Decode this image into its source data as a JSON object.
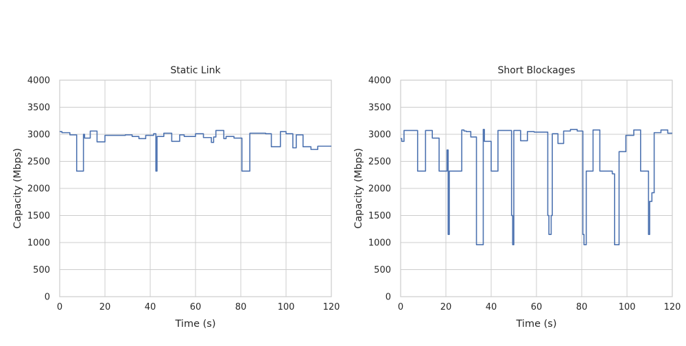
{
  "chart_data": [
    {
      "type": "line",
      "title": "Static Link",
      "xlabel": "Time (s)",
      "ylabel": "Capacity (Mbps)",
      "xlim": [
        0,
        120
      ],
      "ylim": [
        0,
        4000
      ],
      "xticks": [
        "0",
        "20",
        "40",
        "60",
        "80",
        "100",
        "120"
      ],
      "yticks": [
        "0",
        "500",
        "1000",
        "1500",
        "2000",
        "2500",
        "3000",
        "3500",
        "4000"
      ],
      "grid": true,
      "color": "#4c72b0",
      "series": [
        {
          "x": [
            0,
            1,
            1,
            4.5,
            4.5,
            7.5,
            7.5,
            10.5,
            10.5,
            11,
            11,
            13.5,
            13.5,
            16.5,
            16.5,
            20,
            20,
            29,
            29,
            32,
            32,
            35,
            35,
            38,
            38,
            41.5,
            41.5,
            42.5,
            42.5,
            43,
            43,
            46,
            46,
            49.5,
            49.5,
            52,
            52,
            53,
            53,
            55,
            55,
            60,
            60,
            63.5,
            63.5,
            67,
            67,
            68,
            68,
            69,
            69,
            72.5,
            72.5,
            73.5,
            73.5,
            77,
            77,
            80.5,
            80.5,
            81.5,
            81.5,
            84,
            84,
            85,
            85,
            91,
            91,
            93.5,
            93.5,
            97.5,
            97.5,
            100,
            100,
            103,
            103,
            104.5,
            104.5,
            107.5,
            107.5,
            111,
            111,
            114,
            114,
            118,
            118,
            120
          ],
          "y": [
            3050,
            3050,
            3030,
            3030,
            2990,
            2990,
            2320,
            2320,
            3000,
            3000,
            2930,
            2930,
            3060,
            3060,
            2860,
            2860,
            2980,
            2980,
            2990,
            2990,
            2960,
            2960,
            2920,
            2920,
            2980,
            2980,
            3010,
            3010,
            2320,
            2320,
            2960,
            2960,
            3020,
            3020,
            2870,
            2870,
            2870,
            2870,
            2990,
            2990,
            2960,
            2960,
            3010,
            3010,
            2940,
            2940,
            2850,
            2850,
            2950,
            2950,
            3070,
            3070,
            2920,
            2920,
            2960,
            2960,
            2930,
            2930,
            2320,
            2320,
            2320,
            2320,
            3020,
            3020,
            3020,
            3020,
            3010,
            3010,
            2770,
            2770,
            3050,
            3050,
            3010,
            3010,
            2750,
            2750,
            2990,
            2990,
            2770,
            2770,
            2720,
            2720,
            2780,
            2780,
            2780,
            2780
          ]
        }
      ]
    },
    {
      "type": "line",
      "title": "Short Blockages",
      "xlabel": "Time (s)",
      "ylabel": "Capacity (Mbps)",
      "xlim": [
        0,
        120
      ],
      "ylim": [
        0,
        4000
      ],
      "xticks": [
        "0",
        "20",
        "40",
        "60",
        "80",
        "100",
        "120"
      ],
      "yticks": [
        "0",
        "500",
        "1000",
        "1500",
        "2000",
        "2500",
        "3000",
        "3500",
        "4000"
      ],
      "grid": true,
      "color": "#4c72b0",
      "series": [
        {
          "x": [
            0,
            0.5,
            0.5,
            1.5,
            1.5,
            7.5,
            7.5,
            11,
            11,
            14,
            14,
            17,
            17,
            20.5,
            20.5,
            21,
            21,
            21.5,
            21.5,
            27,
            27,
            28,
            28,
            29,
            29,
            31,
            31,
            33.5,
            33.5,
            36.5,
            36.5,
            37,
            37,
            37.5,
            37.5,
            40,
            40,
            43,
            43,
            49,
            49,
            49.5,
            49.5,
            50,
            50,
            53,
            53,
            56,
            56,
            59,
            59,
            61,
            61,
            65,
            65,
            65.5,
            65.5,
            66.5,
            66.5,
            67,
            67,
            69.5,
            69.5,
            72,
            72,
            75,
            75,
            78,
            78,
            80.5,
            80.5,
            81,
            81,
            82,
            82,
            85,
            85,
            88,
            88,
            93.5,
            93.5,
            94.5,
            94.5,
            96.5,
            96.5,
            99.5,
            99.5,
            103,
            103,
            106,
            106,
            109.5,
            109.5,
            110,
            110,
            111,
            111,
            112,
            112,
            115,
            115,
            118,
            118,
            120
          ],
          "y": [
            2920,
            2920,
            2870,
            2870,
            3070,
            3070,
            2320,
            2320,
            3070,
            3070,
            2930,
            2930,
            2320,
            2320,
            2710,
            2710,
            1150,
            1150,
            2320,
            2320,
            3080,
            3080,
            3060,
            3060,
            3050,
            3050,
            2950,
            2950,
            960,
            960,
            3090,
            3090,
            2870,
            2870,
            2870,
            2870,
            2320,
            2320,
            3070,
            3070,
            1500,
            1500,
            960,
            960,
            3070,
            3070,
            2880,
            2880,
            3050,
            3050,
            3040,
            3040,
            3040,
            3040,
            1500,
            1500,
            1150,
            1150,
            1500,
            1500,
            3010,
            3010,
            2830,
            2830,
            3060,
            3060,
            3090,
            3090,
            3060,
            3060,
            1150,
            1150,
            960,
            960,
            2320,
            2320,
            3080,
            3080,
            2320,
            2320,
            2270,
            2270,
            960,
            960,
            2680,
            2680,
            2980,
            2980,
            3080,
            3080,
            2320,
            2320,
            1150,
            1150,
            1760,
            1760,
            1920,
            1920,
            3030,
            3030,
            3080,
            3080,
            3020,
            3020
          ]
        }
      ]
    }
  ]
}
